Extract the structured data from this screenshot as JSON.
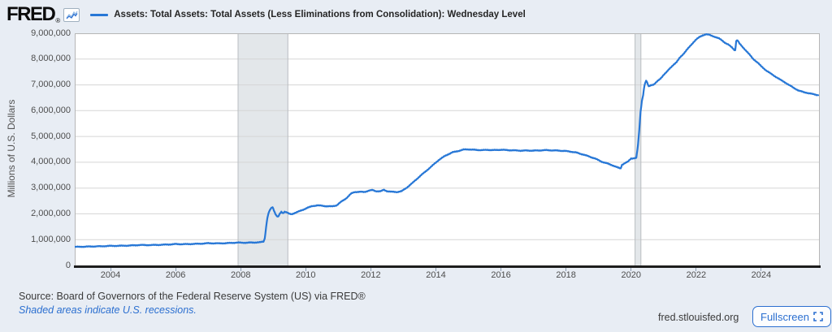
{
  "header": {
    "logo_text": "FRED",
    "logo_reg": "®"
  },
  "footer": {
    "source": "Source: Board of Governors of the Federal Reserve System (US) via FRED®",
    "recession_note": "Shaded areas indicate U.S. recessions.",
    "site_link": "fred.stlouisfed.org",
    "fullscreen_label": "Fullscreen"
  },
  "colors": {
    "page_bg": "#e8edf4",
    "plot_bg": "#ffffff",
    "line": "#2777d6",
    "gridline": "#d5d5d5",
    "plot_border": "#b6b6b6",
    "recession_fill": "#e3e7ea",
    "recession_edge": "#b9bdc1",
    "axis_line": "#1d1d1d",
    "link_blue": "#2b6fd0"
  },
  "chart_data": {
    "type": "line",
    "title": "Assets: Total Assets: Total Assets (Less Eliminations from Consolidation): Wednesday Level",
    "ylabel": "Millions of U.S. Dollars",
    "x_domain": [
      2002.9,
      2025.8
    ],
    "ylim": [
      0,
      9000000
    ],
    "grid": "horizontal-only",
    "legend_position": "top",
    "y_ticks": [
      {
        "value": 0,
        "label": "0"
      },
      {
        "value": 1000000,
        "label": "1,000,000"
      },
      {
        "value": 2000000,
        "label": "2,000,000"
      },
      {
        "value": 3000000,
        "label": "3,000,000"
      },
      {
        "value": 4000000,
        "label": "4,000,000"
      },
      {
        "value": 5000000,
        "label": "5,000,000"
      },
      {
        "value": 6000000,
        "label": "6,000,000"
      },
      {
        "value": 7000000,
        "label": "7,000,000"
      },
      {
        "value": 8000000,
        "label": "8,000,000"
      },
      {
        "value": 9000000,
        "label": "9,000,000"
      }
    ],
    "x_tick_years": [
      2004,
      2006,
      2008,
      2010,
      2012,
      2014,
      2016,
      2018,
      2020,
      2022,
      2024
    ],
    "recession_bands": [
      [
        2007.92,
        2009.45
      ],
      [
        2020.12,
        2020.3
      ]
    ],
    "series": [
      {
        "name": "Assets: Total Assets: Total Assets (Less Eliminations from Consolidation): Wednesday Level",
        "units_millions_usd": true,
        "anchors_year_value": [
          [
            2002.9,
            719
          ],
          [
            2003.1,
            724
          ],
          [
            2003.4,
            735
          ],
          [
            2003.7,
            742
          ],
          [
            2004.0,
            758
          ],
          [
            2004.3,
            762
          ],
          [
            2004.6,
            772
          ],
          [
            2004.9,
            792
          ],
          [
            2005.2,
            790
          ],
          [
            2005.5,
            798
          ],
          [
            2005.8,
            812
          ],
          [
            2006.0,
            830
          ],
          [
            2006.2,
            822
          ],
          [
            2006.5,
            832
          ],
          [
            2006.8,
            845
          ],
          [
            2007.0,
            862
          ],
          [
            2007.3,
            855
          ],
          [
            2007.6,
            865
          ],
          [
            2007.9,
            885
          ],
          [
            2008.1,
            880
          ],
          [
            2008.4,
            888
          ],
          [
            2008.6,
            898
          ],
          [
            2008.7,
            925
          ],
          [
            2008.74,
            1050
          ],
          [
            2008.78,
            1490
          ],
          [
            2008.82,
            1850
          ],
          [
            2008.87,
            2080
          ],
          [
            2008.93,
            2210
          ],
          [
            2008.98,
            2260
          ],
          [
            2009.05,
            2050
          ],
          [
            2009.1,
            1930
          ],
          [
            2009.15,
            1880
          ],
          [
            2009.2,
            1995
          ],
          [
            2009.25,
            2075
          ],
          [
            2009.3,
            2025
          ],
          [
            2009.35,
            2085
          ],
          [
            2009.42,
            2055
          ],
          [
            2009.5,
            1995
          ],
          [
            2009.57,
            1985
          ],
          [
            2009.65,
            2030
          ],
          [
            2009.75,
            2075
          ],
          [
            2009.9,
            2150
          ],
          [
            2010.05,
            2235
          ],
          [
            2010.2,
            2300
          ],
          [
            2010.35,
            2330
          ],
          [
            2010.5,
            2315
          ],
          [
            2010.65,
            2295
          ],
          [
            2010.8,
            2290
          ],
          [
            2010.95,
            2330
          ],
          [
            2011.1,
            2480
          ],
          [
            2011.25,
            2610
          ],
          [
            2011.4,
            2790
          ],
          [
            2011.5,
            2845
          ],
          [
            2011.65,
            2855
          ],
          [
            2011.8,
            2845
          ],
          [
            2011.95,
            2905
          ],
          [
            2012.05,
            2920
          ],
          [
            2012.15,
            2880
          ],
          [
            2012.3,
            2875
          ],
          [
            2012.4,
            2930
          ],
          [
            2012.5,
            2880
          ],
          [
            2012.65,
            2855
          ],
          [
            2012.8,
            2845
          ],
          [
            2012.95,
            2880
          ],
          [
            2013.1,
            3010
          ],
          [
            2013.3,
            3220
          ],
          [
            2013.5,
            3450
          ],
          [
            2013.7,
            3660
          ],
          [
            2013.9,
            3880
          ],
          [
            2014.1,
            4100
          ],
          [
            2014.3,
            4260
          ],
          [
            2014.5,
            4380
          ],
          [
            2014.7,
            4440
          ],
          [
            2014.85,
            4490
          ],
          [
            2015.0,
            4500
          ],
          [
            2015.2,
            4480
          ],
          [
            2015.4,
            4470
          ],
          [
            2015.6,
            4480
          ],
          [
            2015.8,
            4470
          ],
          [
            2016.0,
            4485
          ],
          [
            2016.2,
            4470
          ],
          [
            2016.4,
            4460
          ],
          [
            2016.6,
            4450
          ],
          [
            2016.8,
            4455
          ],
          [
            2017.0,
            4450
          ],
          [
            2017.2,
            4460
          ],
          [
            2017.4,
            4470
          ],
          [
            2017.6,
            4460
          ],
          [
            2017.8,
            4450
          ],
          [
            2017.95,
            4440
          ],
          [
            2018.1,
            4420
          ],
          [
            2018.3,
            4380
          ],
          [
            2018.5,
            4310
          ],
          [
            2018.7,
            4230
          ],
          [
            2018.9,
            4140
          ],
          [
            2019.1,
            4020
          ],
          [
            2019.3,
            3940
          ],
          [
            2019.45,
            3870
          ],
          [
            2019.6,
            3790
          ],
          [
            2019.68,
            3762
          ],
          [
            2019.72,
            3900
          ],
          [
            2019.8,
            3960
          ],
          [
            2019.9,
            4020
          ],
          [
            2020.0,
            4145
          ],
          [
            2020.1,
            4160
          ],
          [
            2020.16,
            4170
          ],
          [
            2020.21,
            4650
          ],
          [
            2020.25,
            5250
          ],
          [
            2020.29,
            5960
          ],
          [
            2020.33,
            6370
          ],
          [
            2020.37,
            6620
          ],
          [
            2020.41,
            6980
          ],
          [
            2020.44,
            7095
          ],
          [
            2020.46,
            7165
          ],
          [
            2020.5,
            7065
          ],
          [
            2020.54,
            6935
          ],
          [
            2020.6,
            6985
          ],
          [
            2020.7,
            7020
          ],
          [
            2020.8,
            7130
          ],
          [
            2020.9,
            7240
          ],
          [
            2021.0,
            7390
          ],
          [
            2021.1,
            7510
          ],
          [
            2021.2,
            7650
          ],
          [
            2021.3,
            7780
          ],
          [
            2021.4,
            7880
          ],
          [
            2021.5,
            8060
          ],
          [
            2021.6,
            8190
          ],
          [
            2021.7,
            8340
          ],
          [
            2021.8,
            8480
          ],
          [
            2021.9,
            8630
          ],
          [
            2022.0,
            8760
          ],
          [
            2022.1,
            8850
          ],
          [
            2022.2,
            8920
          ],
          [
            2022.3,
            8962
          ],
          [
            2022.4,
            8940
          ],
          [
            2022.5,
            8895
          ],
          [
            2022.6,
            8850
          ],
          [
            2022.7,
            8800
          ],
          [
            2022.8,
            8720
          ],
          [
            2022.9,
            8620
          ],
          [
            2023.0,
            8550
          ],
          [
            2023.1,
            8450
          ],
          [
            2023.17,
            8360
          ],
          [
            2023.2,
            8340
          ],
          [
            2023.23,
            8700
          ],
          [
            2023.27,
            8730
          ],
          [
            2023.33,
            8600
          ],
          [
            2023.45,
            8440
          ],
          [
            2023.6,
            8230
          ],
          [
            2023.75,
            8010
          ],
          [
            2023.9,
            7850
          ],
          [
            2024.0,
            7720
          ],
          [
            2024.15,
            7560
          ],
          [
            2024.3,
            7430
          ],
          [
            2024.45,
            7310
          ],
          [
            2024.6,
            7190
          ],
          [
            2024.75,
            7080
          ],
          [
            2024.9,
            6960
          ],
          [
            2025.0,
            6880
          ],
          [
            2025.15,
            6780
          ],
          [
            2025.3,
            6720
          ],
          [
            2025.45,
            6680
          ],
          [
            2025.6,
            6640
          ],
          [
            2025.75,
            6600
          ]
        ]
      }
    ]
  }
}
